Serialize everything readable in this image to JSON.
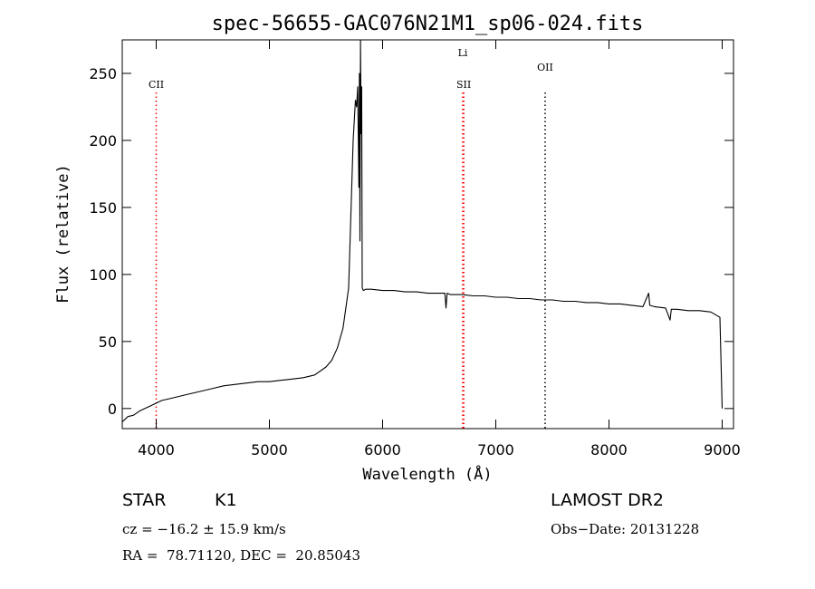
{
  "chart_data": {
    "type": "line",
    "title": "spec-56655-GAC076N21M1_sp06-024.fits",
    "xlabel": "Wavelength (Å)",
    "ylabel": "Flux (relative)",
    "xlim": [
      3700,
      9100
    ],
    "ylim": [
      -15,
      275
    ],
    "xticks": [
      4000,
      5000,
      6000,
      7000,
      8000,
      9000
    ],
    "yticks": [
      0,
      50,
      100,
      150,
      200,
      250
    ],
    "grid": false,
    "series": [
      {
        "x": [
          3700,
          3750,
          3800,
          3850,
          3900,
          3950,
          4000,
          4050,
          4100,
          4200,
          4300,
          4400,
          4500,
          4600,
          4700,
          4800,
          4900,
          5000,
          5100,
          5200,
          5300,
          5400,
          5500,
          5550,
          5600,
          5650,
          5700,
          5720,
          5740,
          5760,
          5770,
          5780,
          5790,
          5795,
          5800,
          5805,
          5810,
          5815,
          5820,
          5830,
          5850,
          5900,
          6000,
          6100,
          6200,
          6300,
          6400,
          6500,
          6550,
          6560,
          6570,
          6600,
          6700,
          6800,
          6900,
          7000,
          7100,
          7200,
          7300,
          7400,
          7500,
          7600,
          7700,
          7800,
          7900,
          8000,
          8100,
          8200,
          8300,
          8350,
          8360,
          8400,
          8500,
          8540,
          8550,
          8600,
          8700,
          8800,
          8900,
          8980,
          9000
        ],
        "y": [
          -10,
          -6,
          -5,
          -2,
          0,
          2,
          4,
          6,
          7,
          9,
          11,
          13,
          15,
          17,
          18,
          19,
          20,
          20,
          21,
          22,
          23,
          25,
          31,
          36,
          45,
          60,
          90,
          145,
          200,
          230,
          225,
          240,
          165,
          250,
          125,
          275,
          205,
          240,
          90,
          88,
          89,
          89,
          88,
          88,
          87,
          87,
          86,
          86,
          86,
          75,
          86,
          85,
          85,
          84,
          84,
          83,
          83,
          82,
          82,
          81,
          81,
          80,
          80,
          79,
          79,
          78,
          78,
          77,
          76,
          86,
          77,
          76,
          75,
          66,
          74,
          74,
          73,
          73,
          72,
          68,
          0
        ],
        "color": "#000000"
      }
    ],
    "lines": [
      {
        "label": "CII",
        "x": 4000,
        "color": "#ff0000"
      },
      {
        "label": "Li",
        "x": 6708,
        "color": "#ff0000"
      },
      {
        "label": "SII",
        "x": 6717,
        "color": "#ff0000"
      },
      {
        "label": "OII",
        "x": 7436,
        "color": "#000000"
      }
    ]
  },
  "info": {
    "class": "STAR",
    "subclass": "K1",
    "survey": "LAMOST DR2",
    "cz": "cz = −16.2 ± 15.9 km/s",
    "obs_date": "Obs−Date: 20131228",
    "radec": "RA =  78.71120, DEC =  20.85043"
  }
}
